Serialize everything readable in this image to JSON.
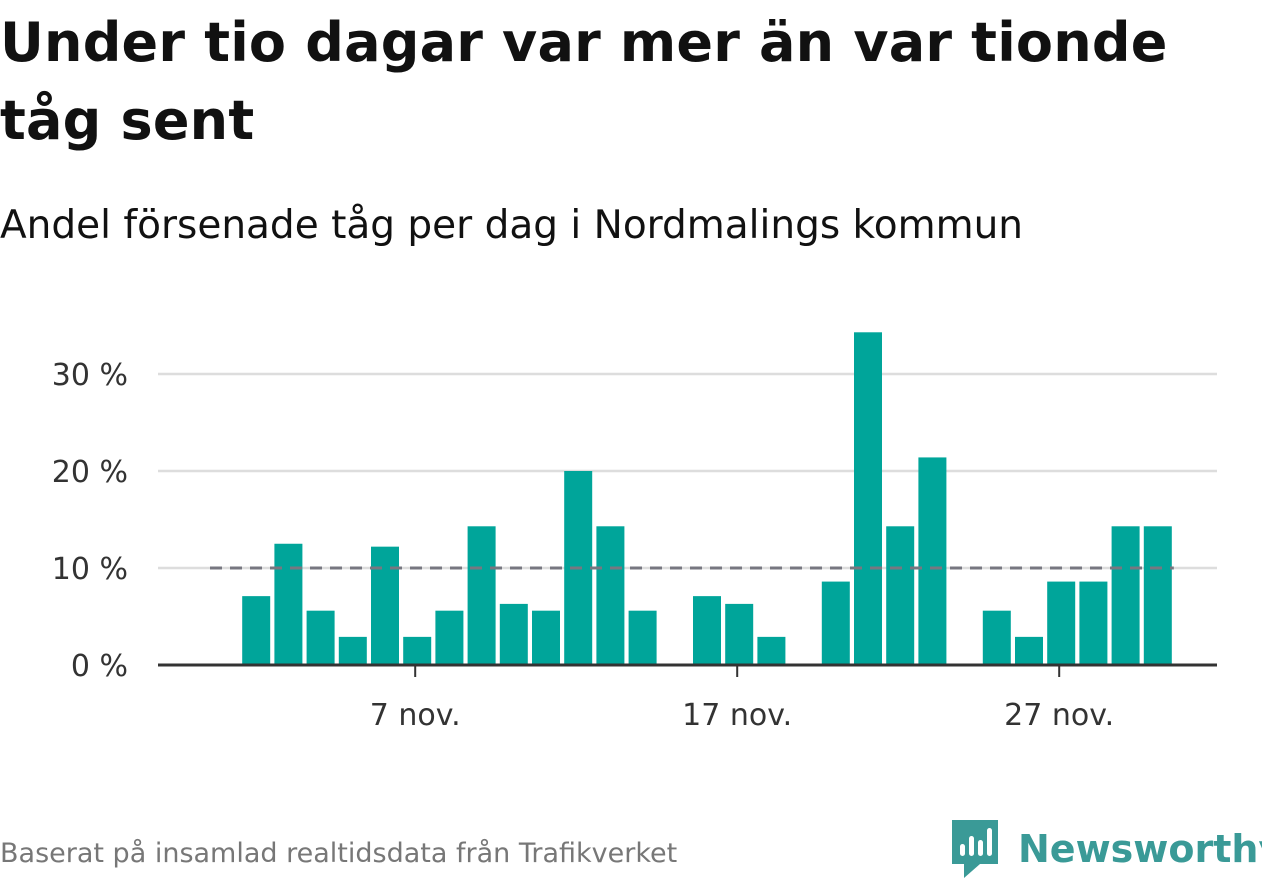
{
  "header": {
    "title": "Under tio dagar var mer än var tionde tåg sent",
    "subtitle": "Andel försenade tåg per dag i Nordmalings kommun"
  },
  "footer": {
    "source": "Baserat på insamlad realtidsdata från Trafikverket",
    "brand": "Newsworthy"
  },
  "colors": {
    "bar": "#00a59a",
    "reference_line": "#777780",
    "grid": "#dddddd",
    "axis": "#333333",
    "brand": "#3a9a97"
  },
  "chart_data": {
    "type": "bar",
    "x": [
      "1 nov.",
      "2 nov.",
      "3 nov.",
      "4 nov.",
      "5 nov.",
      "6 nov.",
      "7 nov.",
      "8 nov.",
      "9 nov.",
      "10 nov.",
      "11 nov.",
      "12 nov.",
      "13 nov.",
      "14 nov.",
      "15 nov.",
      "16 nov.",
      "17 nov.",
      "18 nov.",
      "19 nov.",
      "20 nov.",
      "21 nov.",
      "22 nov.",
      "23 nov.",
      "24 nov.",
      "25 nov.",
      "26 nov.",
      "27 nov.",
      "28 nov.",
      "29 nov.",
      "30 nov.",
      "1 dec.",
      "2 dec."
    ],
    "values": [
      null,
      7.1,
      12.5,
      5.6,
      2.9,
      12.2,
      2.9,
      5.6,
      14.3,
      6.3,
      5.6,
      20,
      14.3,
      5.6,
      null,
      7.1,
      6.3,
      2.9,
      null,
      8.6,
      34.3,
      14.3,
      21.4,
      null,
      5.6,
      2.9,
      8.6,
      8.6,
      14.3,
      14.3,
      null,
      null
    ],
    "reference_value": 10,
    "x_ticks": [
      "7 nov.",
      "17 nov.",
      "27 nov."
    ],
    "y_ticks": [
      "0 %",
      "10 %",
      "20 %",
      "30 %"
    ],
    "y_tick_values": [
      0,
      10,
      20,
      30
    ],
    "ylim": [
      0,
      35
    ],
    "grid": true,
    "legend": "none"
  }
}
